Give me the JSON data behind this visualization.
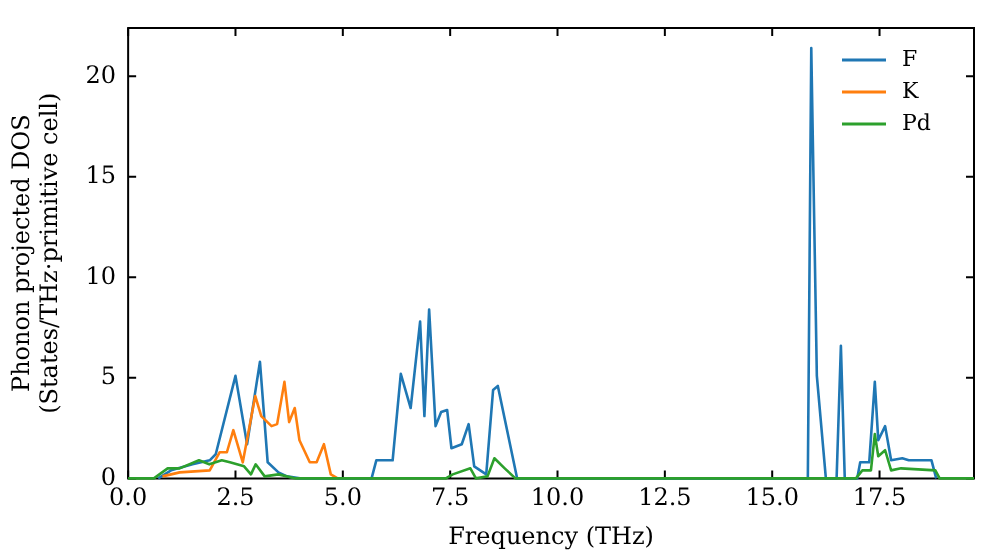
{
  "chart_data": {
    "type": "line",
    "xlabel": "Frequency (THz)",
    "ylabel": "Phonon projected DOS\n(States/THz·primitive cell)",
    "xlim": [
      0,
      19.7
    ],
    "ylim": [
      0,
      22.4
    ],
    "xticks": [
      {
        "value": 0,
        "label": "0.0"
      },
      {
        "value": 2.5,
        "label": "2.5"
      },
      {
        "value": 5,
        "label": "5.0"
      },
      {
        "value": 7.5,
        "label": "7.5"
      },
      {
        "value": 10,
        "label": "10.0"
      },
      {
        "value": 12.5,
        "label": "12.5"
      },
      {
        "value": 15,
        "label": "15.0"
      },
      {
        "value": 17.5,
        "label": "17.5"
      }
    ],
    "yticks": [
      0,
      5,
      10,
      15,
      20
    ],
    "grid": false,
    "legend": "top right",
    "marker": "none",
    "line_style": "solid",
    "series": [
      {
        "name": "F",
        "color": "#1f77b4",
        "x": [
          0.7,
          1.0,
          1.5,
          1.9,
          2.04,
          2.5,
          2.77,
          3.07,
          3.25,
          3.5,
          3.7,
          4.0,
          5.67,
          5.78,
          6.16,
          6.35,
          6.58,
          6.8,
          6.9,
          7.01,
          7.16,
          7.29,
          7.43,
          7.53,
          7.77,
          7.93,
          8.06,
          8.34,
          8.5,
          8.61,
          9.06,
          15.83,
          15.91,
          16.04,
          16.25,
          16.5,
          16.6,
          16.69,
          16.98,
          17.05,
          17.26,
          17.39,
          17.47,
          17.63,
          17.77,
          18.03,
          18.18,
          18.71,
          18.82
        ],
        "values": [
          0,
          0.4,
          0.7,
          0.9,
          1.2,
          5.1,
          1.7,
          5.8,
          0.8,
          0.3,
          0.1,
          0,
          0,
          0.9,
          0.9,
          5.2,
          3.5,
          7.8,
          3.1,
          8.4,
          2.6,
          3.3,
          3.4,
          1.5,
          1.7,
          2.7,
          0.6,
          0.2,
          4.4,
          4.6,
          0,
          0,
          21.4,
          5.1,
          0,
          0,
          6.6,
          0,
          0,
          0.8,
          0.8,
          4.8,
          1.9,
          2.6,
          0.9,
          1.0,
          0.9,
          0.9,
          0
        ]
      },
      {
        "name": "K",
        "color": "#ff7f0e",
        "x": [
          0.8,
          1.2,
          1.9,
          2.13,
          2.3,
          2.45,
          2.67,
          2.96,
          3.1,
          3.34,
          3.47,
          3.64,
          3.75,
          3.88,
          3.99,
          4.23,
          4.39,
          4.56,
          4.72,
          4.88
        ],
        "values": [
          0.1,
          0.3,
          0.4,
          1.3,
          1.3,
          2.4,
          0.8,
          4.1,
          3.1,
          2.6,
          2.7,
          4.8,
          2.8,
          3.5,
          1.9,
          0.8,
          0.8,
          1.7,
          0.2,
          0
        ]
      },
      {
        "name": "Pd",
        "color": "#2ca02c",
        "x": [
          0,
          0.6,
          0.92,
          1.2,
          1.65,
          1.89,
          2.18,
          2.37,
          2.7,
          2.86,
          2.97,
          3.18,
          3.5,
          3.9,
          7.4,
          7.56,
          7.97,
          8.1,
          8.37,
          8.53,
          8.77,
          9.02,
          16.95,
          17.1,
          17.3,
          17.39,
          17.47,
          17.63,
          17.77,
          18.0,
          18.8,
          18.9,
          19.7
        ],
        "values": [
          0,
          0,
          0.5,
          0.5,
          0.9,
          0.7,
          0.9,
          0.8,
          0.6,
          0.2,
          0.7,
          0.1,
          0.2,
          0,
          0,
          0.2,
          0.5,
          0,
          0.1,
          1.0,
          0.5,
          0,
          0,
          0.4,
          0.4,
          2.2,
          1.1,
          1.4,
          0.4,
          0.5,
          0.4,
          0,
          0
        ]
      }
    ]
  }
}
